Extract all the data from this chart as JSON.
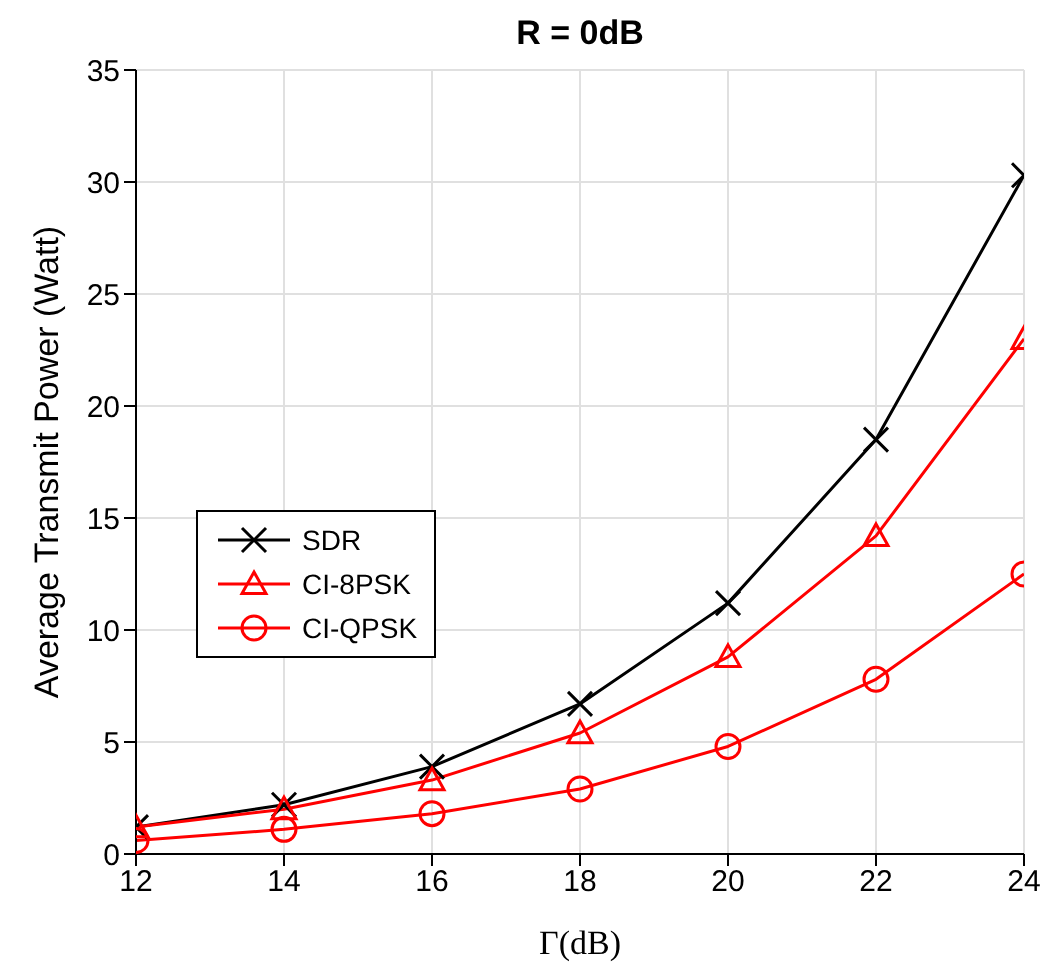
{
  "chart_data": {
    "type": "line",
    "title": "R = 0dB",
    "xlabel": "Γ(dB)",
    "ylabel": "Average Transmit Power (Watt)",
    "x": [
      12,
      14,
      16,
      18,
      20,
      22,
      24
    ],
    "series": [
      {
        "name": "SDR",
        "color": "#000000",
        "marker": "cross",
        "values": [
          1.2,
          2.2,
          3.9,
          6.7,
          11.2,
          18.5,
          30.3
        ]
      },
      {
        "name": "CI-8PSK",
        "color": "#ff0000",
        "marker": "triangle",
        "values": [
          1.2,
          2.0,
          3.3,
          5.4,
          8.8,
          14.2,
          23.0
        ]
      },
      {
        "name": "CI-QPSK",
        "color": "#ff0000",
        "marker": "circle",
        "values": [
          0.6,
          1.1,
          1.8,
          2.9,
          4.8,
          7.8,
          12.5
        ]
      }
    ],
    "xlim": [
      12,
      24
    ],
    "xticks": [
      12,
      14,
      16,
      18,
      20,
      22,
      24
    ],
    "ylim": [
      0,
      35
    ],
    "yticks": [
      0,
      5,
      10,
      15,
      20,
      25,
      30,
      35
    ],
    "grid": true,
    "legend": "left",
    "line_style": "solid"
  }
}
